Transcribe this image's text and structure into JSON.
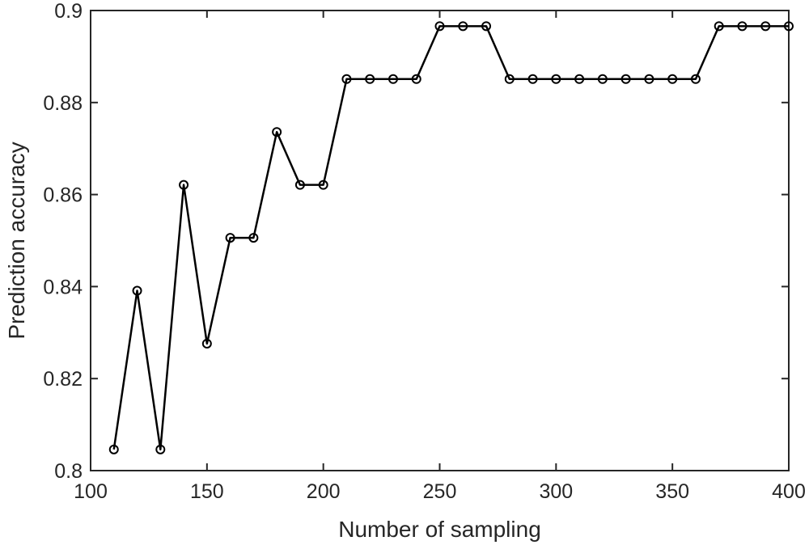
{
  "chart_data": {
    "type": "line",
    "title": "",
    "xlabel": "Number of sampling",
    "ylabel": "Prediction accuracy",
    "xlim": [
      100,
      400
    ],
    "ylim": [
      0.8,
      0.9
    ],
    "xticks": [
      100,
      150,
      200,
      250,
      300,
      350,
      400
    ],
    "xtick_labels": [
      "100",
      "150",
      "200",
      "250",
      "300",
      "350",
      "400"
    ],
    "yticks": [
      0.8,
      0.82,
      0.84,
      0.86,
      0.88,
      0.9
    ],
    "ytick_labels": [
      "0.8",
      "0.82",
      "0.84",
      "0.86",
      "0.88",
      "0.9"
    ],
    "grid": false,
    "line_color": "#000000",
    "marker": "circle",
    "series": [
      {
        "x": [
          110,
          120,
          130,
          140,
          150,
          160,
          170,
          180,
          190,
          200,
          210,
          220,
          230,
          240,
          250,
          260,
          270,
          280,
          290,
          300,
          310,
          320,
          330,
          340,
          350,
          360,
          370,
          380,
          390,
          400
        ],
        "values": [
          0.8046,
          0.8391,
          0.8046,
          0.8621,
          0.8276,
          0.8506,
          0.8506,
          0.8736,
          0.8621,
          0.8621,
          0.8851,
          0.8851,
          0.8851,
          0.8851,
          0.8966,
          0.8966,
          0.8966,
          0.8851,
          0.8851,
          0.8851,
          0.8851,
          0.8851,
          0.8851,
          0.8851,
          0.8851,
          0.8851,
          0.8966,
          0.8966,
          0.8966,
          0.8966
        ]
      }
    ]
  }
}
